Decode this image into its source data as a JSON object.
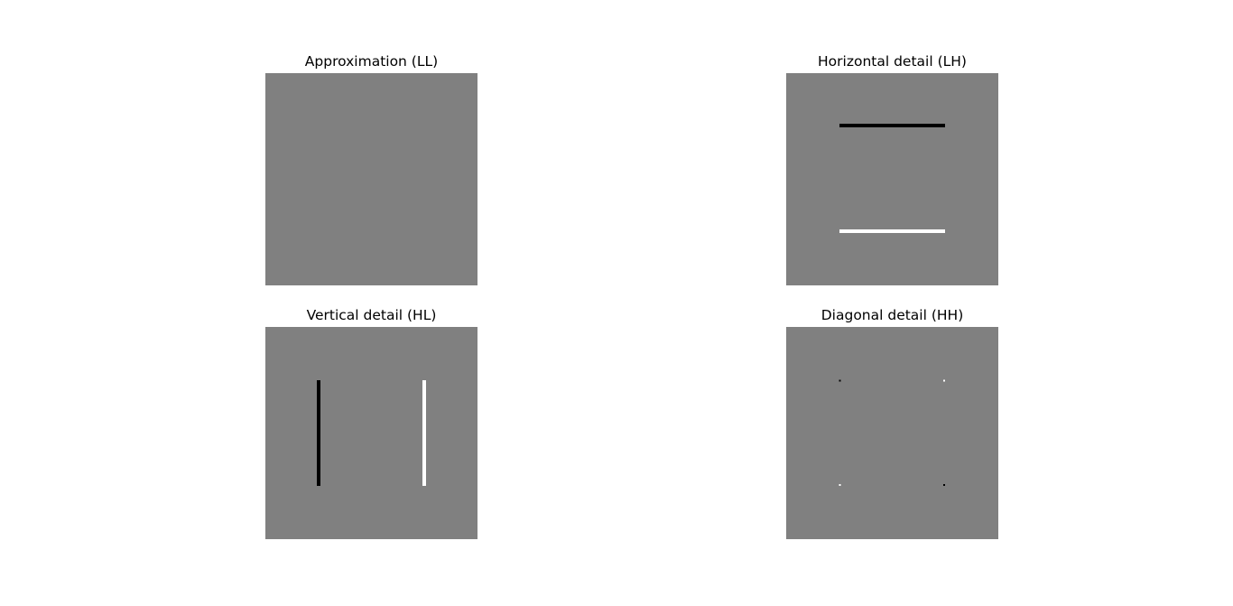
{
  "panels": [
    {
      "title": "Approximation (LL)"
    },
    {
      "title": "Horizontal detail (LH)"
    },
    {
      "title": "Vertical detail (HL)"
    },
    {
      "title": "Diagonal detail (HH)"
    }
  ],
  "colors": {
    "background": "#808080",
    "negative": "#000000",
    "positive": "#ffffff"
  }
}
